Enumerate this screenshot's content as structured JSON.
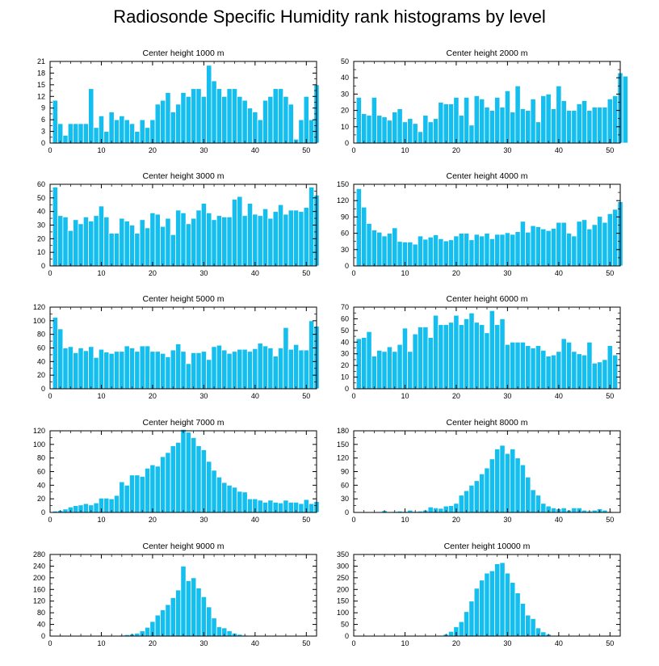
{
  "title": "Radiosonde Specific Humidity rank histograms by level",
  "colors": {
    "bar": "#14bfef",
    "bar_edge": "#ffffff",
    "axis": "#000000"
  },
  "chart_data": [
    {
      "type": "bar",
      "title": "Center height 1000 m",
      "xlim": [
        0,
        52
      ],
      "ylim": [
        0,
        21
      ],
      "xticks": [
        0,
        10,
        20,
        30,
        40,
        50
      ],
      "yticks": [
        0,
        3,
        6,
        9,
        12,
        15,
        18,
        21
      ],
      "values": [
        11,
        5,
        2,
        5,
        5,
        5,
        5,
        14,
        4,
        7,
        3,
        8,
        6,
        7,
        6,
        5,
        3,
        6,
        4,
        6,
        10,
        11,
        13,
        8,
        10,
        13,
        12,
        14,
        14,
        12,
        20,
        16,
        14,
        12,
        14,
        14,
        12,
        11,
        9,
        8,
        6,
        11,
        12,
        14,
        14,
        12,
        10,
        1,
        6,
        12,
        6,
        15
      ]
    },
    {
      "type": "bar",
      "title": "Center height 2000 m",
      "xlim": [
        0,
        52
      ],
      "ylim": [
        0,
        50
      ],
      "xticks": [
        0,
        10,
        20,
        30,
        40,
        50
      ],
      "yticks": [
        0,
        10,
        20,
        30,
        40,
        50
      ],
      "values": [
        28,
        18,
        17,
        28,
        17,
        16,
        14,
        19,
        21,
        13,
        15,
        12,
        7,
        17,
        13,
        15,
        25,
        24,
        24,
        28,
        17,
        28,
        11,
        29,
        27,
        22,
        20,
        28,
        22,
        32,
        19,
        35,
        21,
        20,
        27,
        13,
        29,
        30,
        21,
        35,
        26,
        20,
        20,
        24,
        26,
        20,
        22,
        22,
        22,
        27,
        29,
        43,
        41
      ]
    },
    {
      "type": "bar",
      "title": "Center height 3000 m",
      "xlim": [
        0,
        52
      ],
      "ylim": [
        0,
        60
      ],
      "xticks": [
        0,
        10,
        20,
        30,
        40,
        50
      ],
      "yticks": [
        0,
        10,
        20,
        30,
        40,
        50,
        60
      ],
      "values": [
        58,
        37,
        36,
        26,
        34,
        31,
        36,
        33,
        37,
        44,
        36,
        24,
        24,
        35,
        33,
        30,
        24,
        34,
        28,
        39,
        38,
        29,
        35,
        23,
        41,
        39,
        31,
        35,
        41,
        46,
        39,
        34,
        37,
        36,
        36,
        49,
        51,
        37,
        46,
        38,
        37,
        42,
        35,
        40,
        45,
        38,
        41,
        41,
        40,
        43,
        58,
        52
      ]
    },
    {
      "type": "bar",
      "title": "Center height 4000 m",
      "xlim": [
        0,
        52
      ],
      "ylim": [
        0,
        150
      ],
      "xticks": [
        0,
        10,
        20,
        30,
        40,
        50
      ],
      "yticks": [
        0,
        30,
        60,
        90,
        120,
        150
      ],
      "values": [
        142,
        108,
        78,
        66,
        62,
        55,
        60,
        70,
        45,
        44,
        44,
        40,
        55,
        49,
        53,
        57,
        50,
        46,
        48,
        55,
        60,
        60,
        48,
        58,
        55,
        60,
        50,
        58,
        58,
        61,
        58,
        63,
        82,
        62,
        74,
        72,
        68,
        65,
        69,
        80,
        80,
        60,
        55,
        82,
        85,
        68,
        76,
        91,
        80,
        96,
        104,
        118
      ]
    },
    {
      "type": "bar",
      "title": "Center height 5000 m",
      "xlim": [
        0,
        52
      ],
      "ylim": [
        0,
        120
      ],
      "xticks": [
        0,
        10,
        20,
        30,
        40,
        50
      ],
      "yticks": [
        0,
        20,
        40,
        60,
        80,
        100,
        120
      ],
      "values": [
        105,
        88,
        60,
        62,
        53,
        60,
        56,
        62,
        46,
        58,
        54,
        52,
        55,
        55,
        63,
        60,
        55,
        63,
        63,
        55,
        55,
        52,
        47,
        57,
        66,
        55,
        37,
        53,
        53,
        55,
        43,
        62,
        64,
        57,
        52,
        55,
        58,
        58,
        55,
        59,
        67,
        63,
        60,
        48,
        60,
        90,
        58,
        65,
        57,
        57,
        100,
        92
      ]
    },
    {
      "type": "bar",
      "title": "Center height 6000 m",
      "xlim": [
        0,
        52
      ],
      "ylim": [
        0,
        70
      ],
      "xticks": [
        0,
        10,
        20,
        30,
        40,
        50
      ],
      "yticks": [
        0,
        10,
        20,
        30,
        40,
        50,
        60,
        70
      ],
      "values": [
        43,
        44,
        49,
        28,
        33,
        32,
        36,
        32,
        38,
        52,
        32,
        47,
        53,
        53,
        44,
        63,
        55,
        55,
        57,
        63,
        55,
        60,
        65,
        57,
        55,
        48,
        67,
        55,
        60,
        38,
        40,
        40,
        40,
        37,
        35,
        37,
        33,
        28,
        29,
        32,
        43,
        40,
        32,
        30,
        29,
        40,
        22,
        23,
        25,
        37,
        29
      ]
    },
    {
      "type": "bar",
      "title": "Center height 7000 m",
      "xlim": [
        0,
        52
      ],
      "ylim": [
        0,
        120
      ],
      "xticks": [
        0,
        10,
        20,
        30,
        40,
        50
      ],
      "yticks": [
        0,
        20,
        40,
        60,
        80,
        100,
        120
      ],
      "values": [
        2,
        3,
        5,
        8,
        10,
        11,
        13,
        11,
        14,
        21,
        21,
        20,
        25,
        45,
        40,
        55,
        55,
        53,
        65,
        70,
        68,
        82,
        88,
        98,
        103,
        122,
        118,
        110,
        98,
        92,
        75,
        62,
        52,
        44,
        40,
        37,
        31,
        30,
        20,
        20,
        18,
        15,
        18,
        15,
        14,
        18,
        15,
        15,
        13,
        19,
        13,
        16
      ]
    },
    {
      "type": "bar",
      "title": "Center height 8000 m",
      "xlim": [
        0,
        52
      ],
      "ylim": [
        0,
        180
      ],
      "xticks": [
        0,
        10,
        20,
        30,
        40,
        50
      ],
      "yticks": [
        0,
        30,
        60,
        90,
        120,
        150,
        180
      ],
      "values": [
        0,
        0,
        0,
        0,
        1,
        4,
        1,
        2,
        3,
        2,
        5,
        2,
        3,
        5,
        12,
        10,
        9,
        14,
        15,
        20,
        38,
        48,
        60,
        70,
        85,
        98,
        118,
        140,
        148,
        130,
        140,
        120,
        105,
        78,
        50,
        38,
        20,
        14,
        10,
        8,
        10,
        5,
        10,
        10,
        5,
        3,
        5,
        8,
        5,
        2,
        1,
        0
      ]
    },
    {
      "type": "bar",
      "title": "Center height 9000 m",
      "xlim": [
        0,
        52
      ],
      "ylim": [
        0,
        280
      ],
      "xticks": [
        0,
        10,
        20,
        30,
        40,
        50
      ],
      "yticks": [
        0,
        40,
        80,
        120,
        160,
        200,
        240,
        280
      ],
      "values": [
        0,
        0,
        0,
        0,
        0,
        0,
        0,
        0,
        0,
        0,
        0,
        0,
        2,
        3,
        5,
        7,
        10,
        18,
        30,
        50,
        72,
        90,
        108,
        132,
        158,
        240,
        190,
        200,
        165,
        135,
        100,
        62,
        32,
        28,
        18,
        10,
        6,
        3,
        2,
        1,
        0,
        1,
        0,
        0,
        0,
        0,
        0,
        0,
        0,
        0,
        0,
        0
      ]
    },
    {
      "type": "bar",
      "title": "Center height 10000 m",
      "xlim": [
        0,
        52
      ],
      "ylim": [
        0,
        350
      ],
      "xticks": [
        0,
        10,
        20,
        30,
        40,
        50
      ],
      "yticks": [
        0,
        50,
        100,
        150,
        200,
        250,
        300,
        350
      ],
      "values": [
        0,
        0,
        0,
        0,
        0,
        0,
        0,
        0,
        0,
        0,
        0,
        0,
        0,
        0,
        0,
        1,
        2,
        8,
        20,
        40,
        62,
        105,
        150,
        205,
        240,
        270,
        280,
        310,
        315,
        270,
        230,
        185,
        140,
        90,
        75,
        35,
        18,
        8,
        3,
        1,
        0,
        0,
        0,
        0,
        0,
        0,
        0,
        0,
        0,
        0,
        0,
        0
      ]
    }
  ]
}
